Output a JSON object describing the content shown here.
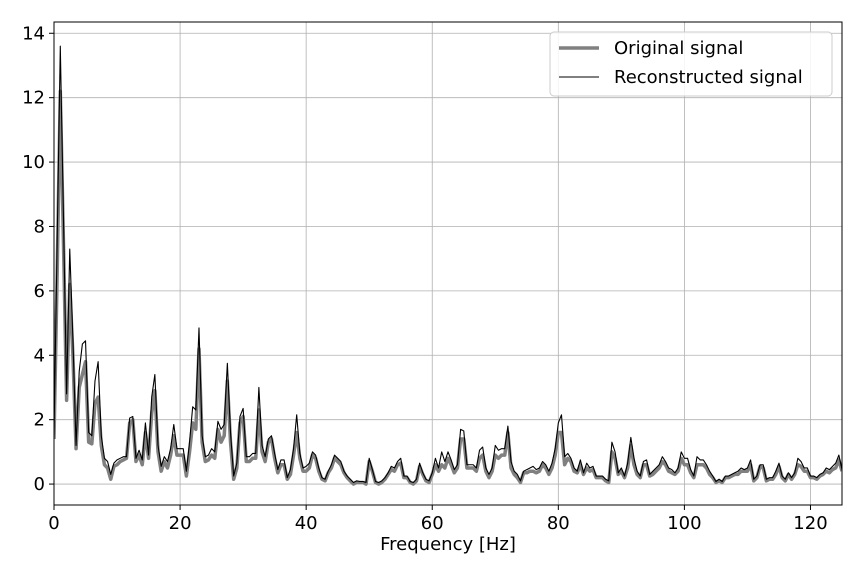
{
  "chart_data": {
    "type": "line",
    "title": "",
    "xlabel": "Frequency [Hz]",
    "ylabel": "",
    "xlim": [
      0,
      125
    ],
    "ylim": [
      -0.65,
      14.35
    ],
    "xticks": [
      0,
      20,
      40,
      60,
      80,
      100,
      120
    ],
    "yticks": [
      0,
      2,
      4,
      6,
      8,
      10,
      12,
      14
    ],
    "grid": true,
    "legend_position": "top-right",
    "series": [
      {
        "name": "Original signal",
        "color": "#808080",
        "style": "thick",
        "x": [
          0,
          0.5,
          1,
          1.5,
          2,
          2.5,
          3,
          3.5,
          4,
          4.5,
          5,
          5.5,
          6,
          6.5,
          7,
          7.5,
          8,
          8.5,
          9,
          9.5,
          10,
          10.5,
          11,
          11.5,
          12,
          12.5,
          13,
          13.5,
          14,
          14.5,
          15,
          15.5,
          16,
          16.5,
          17,
          17.5,
          18,
          18.5,
          19,
          19.5,
          20,
          20.5,
          21,
          21.5,
          22,
          22.5,
          23,
          23.5,
          24,
          24.5,
          25,
          25.5,
          26,
          26.5,
          27,
          27.5,
          28,
          28.5,
          29,
          29.5,
          30,
          30.5,
          31,
          31.5,
          32,
          32.5,
          33,
          33.5,
          34,
          34.5,
          35,
          35.5,
          36,
          36.5,
          37,
          37.5,
          38,
          38.5,
          39,
          39.5,
          40,
          40.5,
          41,
          41.5,
          42,
          42.5,
          43,
          43.5,
          44,
          44.5,
          45,
          45.5,
          46,
          46.5,
          47,
          47.5,
          48,
          48.5,
          49,
          49.5,
          50,
          50.5,
          51,
          51.5,
          52,
          52.5,
          53,
          53.5,
          54,
          54.5,
          55,
          55.5,
          56,
          56.5,
          57,
          57.5,
          58,
          58.5,
          59,
          59.5,
          60,
          60.5,
          61,
          61.5,
          62,
          62.5,
          63,
          63.5,
          64,
          64.5,
          65,
          65.5,
          66,
          66.5,
          67,
          67.5,
          68,
          68.5,
          69,
          69.5,
          70,
          70.5,
          71,
          71.5,
          72,
          72.5,
          73,
          73.5,
          74,
          74.5,
          75,
          75.5,
          76,
          76.5,
          77,
          77.5,
          78,
          78.5,
          79,
          79.5,
          80,
          80.5,
          81,
          81.5,
          82,
          82.5,
          83,
          83.5,
          84,
          84.5,
          85,
          85.5,
          86,
          86.5,
          87,
          87.5,
          88,
          88.5,
          89,
          89.5,
          90,
          90.5,
          91,
          91.5,
          92,
          92.5,
          93,
          93.5,
          94,
          94.5,
          95,
          95.5,
          96,
          96.5,
          97,
          97.5,
          98,
          98.5,
          99,
          99.5,
          100,
          100.5,
          101,
          101.5,
          102,
          102.5,
          103,
          103.5,
          104,
          104.5,
          105,
          105.5,
          106,
          106.5,
          107,
          107.5,
          108,
          108.5,
          109,
          109.5,
          110,
          110.5,
          111,
          111.5,
          112,
          112.5,
          113,
          113.5,
          114,
          114.5,
          115,
          115.5,
          116,
          116.5,
          117,
          117.5,
          118,
          118.5,
          119,
          119.5,
          120,
          120.5,
          121,
          121.5,
          122,
          122.5,
          123,
          123.5,
          124,
          124.5,
          125
        ],
        "y": [
          1.4,
          6.5,
          12.2,
          7.5,
          2.6,
          6.2,
          4.0,
          1.1,
          3.0,
          3.4,
          3.8,
          1.3,
          1.25,
          2.5,
          2.7,
          1.2,
          0.6,
          0.5,
          0.15,
          0.55,
          0.6,
          0.7,
          0.75,
          0.8,
          1.9,
          2.0,
          0.7,
          0.9,
          0.6,
          1.6,
          0.8,
          2.2,
          2.9,
          1.0,
          0.4,
          0.7,
          0.5,
          0.9,
          1.5,
          0.9,
          0.9,
          0.9,
          0.25,
          1.0,
          1.9,
          1.7,
          4.2,
          1.3,
          0.7,
          0.75,
          0.9,
          0.8,
          1.7,
          1.3,
          1.5,
          3.2,
          1.3,
          0.15,
          0.5,
          1.9,
          2.1,
          0.7,
          0.7,
          0.8,
          0.8,
          2.3,
          1.0,
          0.7,
          1.3,
          1.4,
          0.8,
          0.35,
          0.6,
          0.6,
          0.15,
          0.3,
          0.9,
          1.6,
          0.8,
          0.4,
          0.4,
          0.5,
          0.9,
          0.8,
          0.4,
          0.15,
          0.1,
          0.35,
          0.5,
          0.8,
          0.7,
          0.6,
          0.35,
          0.2,
          0.1,
          0.0,
          0.05,
          0.05,
          0.05,
          0.0,
          0.7,
          0.4,
          0.05,
          0.0,
          0.05,
          0.15,
          0.3,
          0.45,
          0.4,
          0.6,
          0.65,
          0.2,
          0.2,
          0.05,
          0.0,
          0.1,
          0.55,
          0.3,
          0.1,
          0.05,
          0.3,
          0.6,
          0.4,
          0.6,
          0.5,
          0.8,
          0.6,
          0.35,
          0.5,
          1.4,
          1.4,
          0.5,
          0.5,
          0.5,
          0.4,
          0.8,
          0.9,
          0.4,
          0.2,
          0.4,
          0.9,
          0.8,
          0.9,
          0.9,
          1.6,
          0.5,
          0.3,
          0.2,
          0.05,
          0.35,
          0.35,
          0.4,
          0.4,
          0.35,
          0.4,
          0.6,
          0.5,
          0.3,
          0.5,
          0.9,
          1.6,
          1.6,
          0.6,
          0.8,
          0.7,
          0.4,
          0.35,
          0.6,
          0.3,
          0.5,
          0.4,
          0.45,
          0.2,
          0.2,
          0.2,
          0.1,
          0.05,
          1.0,
          0.8,
          0.3,
          0.4,
          0.2,
          0.5,
          1.2,
          0.6,
          0.3,
          0.2,
          0.6,
          0.6,
          0.25,
          0.3,
          0.4,
          0.5,
          0.7,
          0.6,
          0.4,
          0.35,
          0.3,
          0.4,
          0.8,
          0.6,
          0.6,
          0.35,
          0.2,
          0.6,
          0.6,
          0.6,
          0.5,
          0.3,
          0.2,
          0.05,
          0.1,
          0.05,
          0.2,
          0.2,
          0.25,
          0.3,
          0.3,
          0.4,
          0.4,
          0.4,
          0.6,
          0.1,
          0.2,
          0.55,
          0.5,
          0.1,
          0.15,
          0.15,
          0.3,
          0.55,
          0.2,
          0.1,
          0.3,
          0.15,
          0.3,
          0.6,
          0.55,
          0.4,
          0.4,
          0.2,
          0.2,
          0.15,
          0.25,
          0.3,
          0.4,
          0.35,
          0.45,
          0.5,
          0.75,
          0.4
        ]
      },
      {
        "name": "Reconstructed signal",
        "color": "#000000",
        "style": "thin",
        "x": [
          0,
          0.5,
          1,
          1.5,
          2,
          2.5,
          3,
          3.5,
          4,
          4.5,
          5,
          5.5,
          6,
          6.5,
          7,
          7.5,
          8,
          8.5,
          9,
          9.5,
          10,
          10.5,
          11,
          11.5,
          12,
          12.5,
          13,
          13.5,
          14,
          14.5,
          15,
          15.5,
          16,
          16.5,
          17,
          17.5,
          18,
          18.5,
          19,
          19.5,
          20,
          20.5,
          21,
          21.5,
          22,
          22.5,
          23,
          23.5,
          24,
          24.5,
          25,
          25.5,
          26,
          26.5,
          27,
          27.5,
          28,
          28.5,
          29,
          29.5,
          30,
          30.5,
          31,
          31.5,
          32,
          32.5,
          33,
          33.5,
          34,
          34.5,
          35,
          35.5,
          36,
          36.5,
          37,
          37.5,
          38,
          38.5,
          39,
          39.5,
          40,
          40.5,
          41,
          41.5,
          42,
          42.5,
          43,
          43.5,
          44,
          44.5,
          45,
          45.5,
          46,
          46.5,
          47,
          47.5,
          48,
          48.5,
          49,
          49.5,
          50,
          50.5,
          51,
          51.5,
          52,
          52.5,
          53,
          53.5,
          54,
          54.5,
          55,
          55.5,
          56,
          56.5,
          57,
          57.5,
          58,
          58.5,
          59,
          59.5,
          60,
          60.5,
          61,
          61.5,
          62,
          62.5,
          63,
          63.5,
          64,
          64.5,
          65,
          65.5,
          66,
          66.5,
          67,
          67.5,
          68,
          68.5,
          69,
          69.5,
          70,
          70.5,
          71,
          71.5,
          72,
          72.5,
          73,
          73.5,
          74,
          74.5,
          75,
          75.5,
          76,
          76.5,
          77,
          77.5,
          78,
          78.5,
          79,
          79.5,
          80,
          80.5,
          81,
          81.5,
          82,
          82.5,
          83,
          83.5,
          84,
          84.5,
          85,
          85.5,
          86,
          86.5,
          87,
          87.5,
          88,
          88.5,
          89,
          89.5,
          90,
          90.5,
          91,
          91.5,
          92,
          92.5,
          93,
          93.5,
          94,
          94.5,
          95,
          95.5,
          96,
          96.5,
          97,
          97.5,
          98,
          98.5,
          99,
          99.5,
          100,
          100.5,
          101,
          101.5,
          102,
          102.5,
          103,
          103.5,
          104,
          104.5,
          105,
          105.5,
          106,
          106.5,
          107,
          107.5,
          108,
          108.5,
          109,
          109.5,
          110,
          110.5,
          111,
          111.5,
          112,
          112.5,
          113,
          113.5,
          114,
          114.5,
          115,
          115.5,
          116,
          116.5,
          117,
          117.5,
          118,
          118.5,
          119,
          119.5,
          120,
          120.5,
          121,
          121.5,
          122,
          122.5,
          123,
          123.5,
          124,
          124.5,
          125
        ],
        "y": [
          1.5,
          7.5,
          13.6,
          8.3,
          2.8,
          7.3,
          4.5,
          1.2,
          3.5,
          4.35,
          4.45,
          1.6,
          1.5,
          3.2,
          3.8,
          1.5,
          0.8,
          0.7,
          0.3,
          0.65,
          0.75,
          0.8,
          0.85,
          0.85,
          2.05,
          2.1,
          0.8,
          1.05,
          0.75,
          1.9,
          0.9,
          2.7,
          3.4,
          1.2,
          0.55,
          0.85,
          0.7,
          1.1,
          1.85,
          1.1,
          1.1,
          1.1,
          0.4,
          1.3,
          2.4,
          2.3,
          4.85,
          1.5,
          0.85,
          0.9,
          1.1,
          1.0,
          1.95,
          1.7,
          1.85,
          3.75,
          1.6,
          0.25,
          0.65,
          2.1,
          2.35,
          0.85,
          0.85,
          0.95,
          0.95,
          3.0,
          1.2,
          0.85,
          1.4,
          1.5,
          0.95,
          0.45,
          0.75,
          0.75,
          0.2,
          0.45,
          1.1,
          2.15,
          0.95,
          0.5,
          0.55,
          0.65,
          1.0,
          0.9,
          0.5,
          0.2,
          0.15,
          0.4,
          0.6,
          0.9,
          0.8,
          0.7,
          0.4,
          0.25,
          0.15,
          0.05,
          0.1,
          0.08,
          0.08,
          0.05,
          0.8,
          0.45,
          0.08,
          0.05,
          0.1,
          0.2,
          0.35,
          0.55,
          0.5,
          0.7,
          0.8,
          0.25,
          0.25,
          0.08,
          0.05,
          0.15,
          0.65,
          0.35,
          0.15,
          0.1,
          0.35,
          0.8,
          0.5,
          1.0,
          0.7,
          1.0,
          0.75,
          0.45,
          0.6,
          1.7,
          1.65,
          0.6,
          0.6,
          0.6,
          0.5,
          1.05,
          1.15,
          0.5,
          0.3,
          0.5,
          1.2,
          1.05,
          1.1,
          1.1,
          1.8,
          0.7,
          0.4,
          0.3,
          0.1,
          0.4,
          0.45,
          0.5,
          0.55,
          0.45,
          0.5,
          0.7,
          0.6,
          0.4,
          0.65,
          1.1,
          1.9,
          2.15,
          0.85,
          0.95,
          0.8,
          0.5,
          0.4,
          0.75,
          0.35,
          0.65,
          0.5,
          0.55,
          0.25,
          0.25,
          0.25,
          0.15,
          0.1,
          1.3,
          1.0,
          0.35,
          0.5,
          0.25,
          0.65,
          1.45,
          0.8,
          0.4,
          0.25,
          0.7,
          0.75,
          0.3,
          0.4,
          0.5,
          0.6,
          0.85,
          0.7,
          0.5,
          0.45,
          0.35,
          0.5,
          1.0,
          0.8,
          0.8,
          0.45,
          0.25,
          0.85,
          0.75,
          0.75,
          0.6,
          0.4,
          0.25,
          0.08,
          0.15,
          0.08,
          0.25,
          0.25,
          0.3,
          0.35,
          0.4,
          0.5,
          0.45,
          0.5,
          0.75,
          0.15,
          0.25,
          0.6,
          0.6,
          0.15,
          0.2,
          0.2,
          0.4,
          0.65,
          0.25,
          0.15,
          0.35,
          0.2,
          0.35,
          0.8,
          0.7,
          0.5,
          0.5,
          0.25,
          0.25,
          0.2,
          0.3,
          0.35,
          0.5,
          0.45,
          0.55,
          0.65,
          0.9,
          0.45
        ]
      }
    ]
  }
}
